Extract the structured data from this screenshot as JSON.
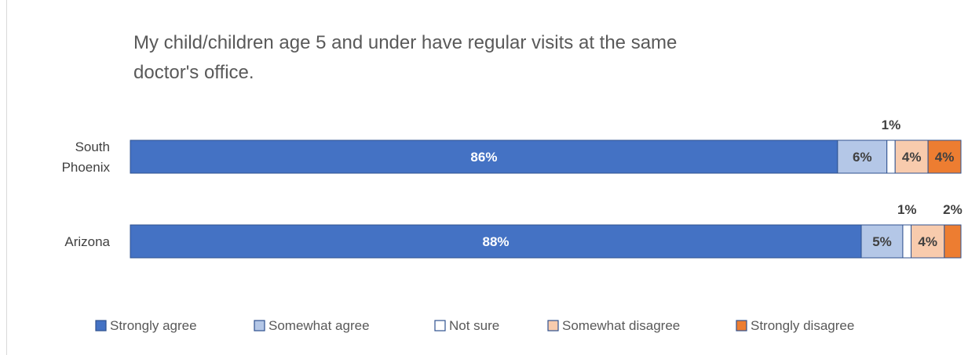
{
  "chart_data": {
    "type": "bar",
    "orientation": "horizontal",
    "stacked": true,
    "title_lines": [
      "My child/children age 5 and under have regular visits at the same",
      "doctor's office."
    ],
    "categories": [
      "South Phoenix",
      "Arizona"
    ],
    "category_label_lines": [
      [
        "South",
        "Phoenix"
      ],
      [
        "Arizona"
      ]
    ],
    "xlim": [
      0,
      100
    ],
    "grid": false,
    "legend_position": "bottom",
    "series": [
      {
        "name": "Strongly agree",
        "values": [
          86,
          88
        ],
        "labels": [
          "86%",
          "88%"
        ],
        "color": "#4472C4",
        "stroke": "#2F528F",
        "label_color": "#ffffff",
        "label_position": "center"
      },
      {
        "name": "Somewhat agree",
        "values": [
          6,
          5
        ],
        "labels": [
          "6%",
          "5%"
        ],
        "color": "#B4C7E7",
        "stroke": "#2F528F",
        "label_color": "#404040",
        "label_position": "center"
      },
      {
        "name": "Not sure",
        "values": [
          1,
          1
        ],
        "labels": [
          "1%",
          "1%"
        ],
        "color": "#ffffff",
        "stroke": "#2F528F",
        "label_color": "#404040",
        "label_position": "above"
      },
      {
        "name": "Somewhat disagree",
        "values": [
          4,
          4
        ],
        "labels": [
          "4%",
          "4%"
        ],
        "color": "#F8CBAD",
        "stroke": "#2F528F",
        "label_color": "#404040",
        "label_position": "center"
      },
      {
        "name": "Strongly disagree",
        "values": [
          4,
          2
        ],
        "labels": [
          "4%",
          "2%"
        ],
        "color": "#ED7D31",
        "stroke": "#2F528F",
        "label_color": "#404040",
        "label_position_by_category": [
          "center",
          "above"
        ]
      }
    ]
  }
}
